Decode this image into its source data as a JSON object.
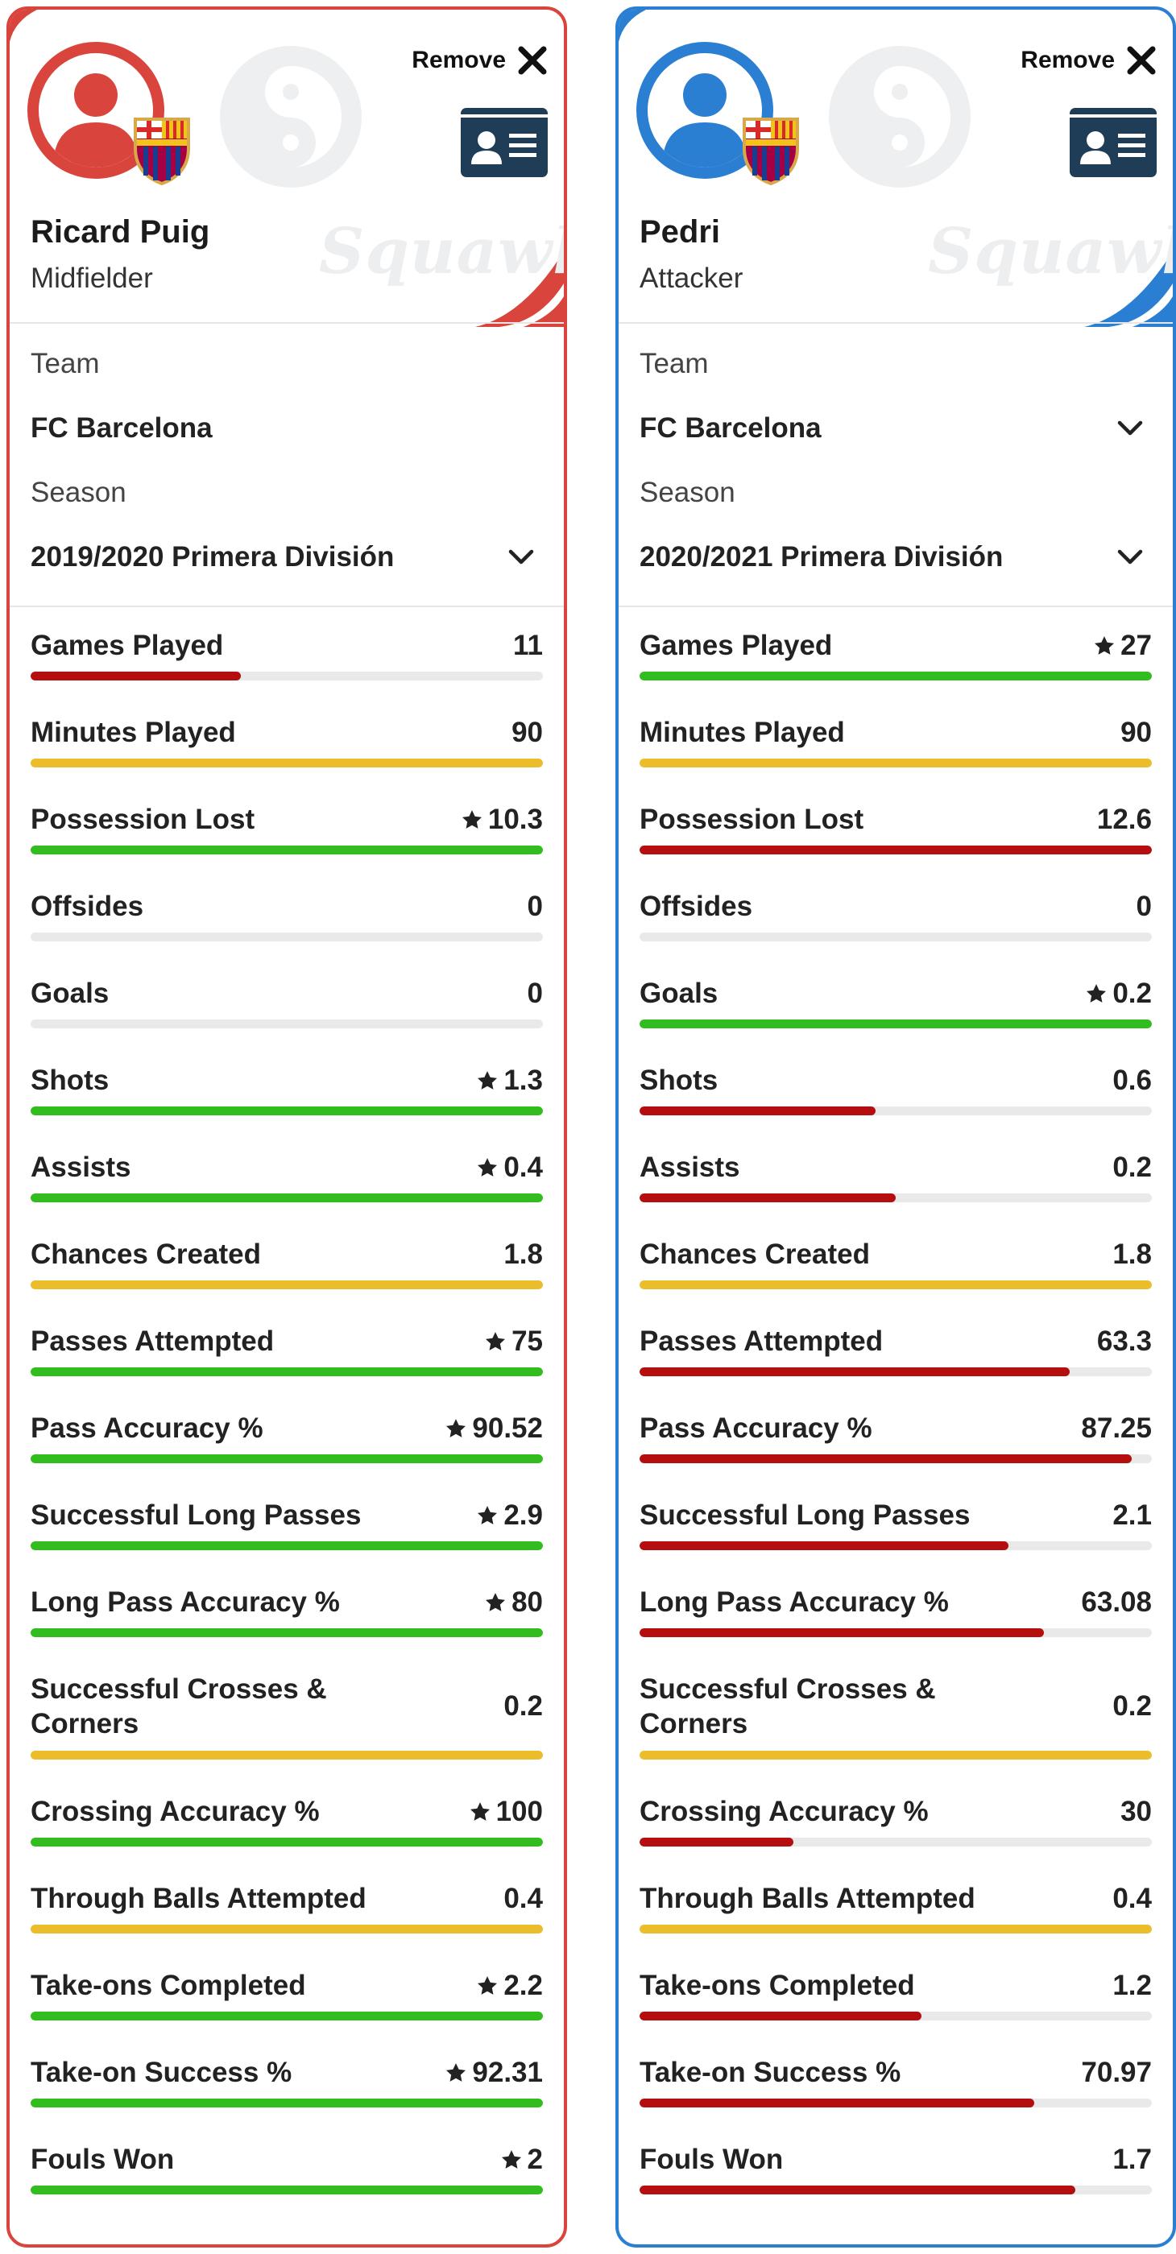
{
  "watermark": "Squawka",
  "remove_label": "Remove",
  "labels": {
    "team": "Team",
    "season": "Season"
  },
  "colors": {
    "green": "#32bd1e",
    "red": "#b40e0e",
    "yellow": "#ecbd2b",
    "empty": "#e9e9ea",
    "card1_accent": "#d9453d",
    "card2_accent": "#2a7fd2"
  },
  "icons": {
    "remove": "close-icon",
    "profile": "id-card-icon",
    "dropdown": "chevron-down-icon",
    "best": "star-icon",
    "club": "fc-barcelona-crest",
    "avatar": "user-silhouette-icon"
  },
  "players": [
    {
      "name": "Ricard Puig",
      "position": "Midfielder",
      "team": "FC Barcelona",
      "season": "2019/2020 Primera División",
      "stats": [
        {
          "label": "Games Played",
          "value": "11",
          "star": false,
          "bar": "red",
          "fill": 0.41
        },
        {
          "label": "Minutes Played",
          "value": "90",
          "star": false,
          "bar": "yellow",
          "fill": 1
        },
        {
          "label": "Possession Lost",
          "value": "10.3",
          "star": true,
          "bar": "green",
          "fill": 1
        },
        {
          "label": "Offsides",
          "value": "0",
          "star": false,
          "bar": "empty",
          "fill": 0
        },
        {
          "label": "Goals",
          "value": "0",
          "star": false,
          "bar": "empty",
          "fill": 0
        },
        {
          "label": "Shots",
          "value": "1.3",
          "star": true,
          "bar": "green",
          "fill": 1
        },
        {
          "label": "Assists",
          "value": "0.4",
          "star": true,
          "bar": "green",
          "fill": 1
        },
        {
          "label": "Chances Created",
          "value": "1.8",
          "star": false,
          "bar": "yellow",
          "fill": 1
        },
        {
          "label": "Passes Attempted",
          "value": "75",
          "star": true,
          "bar": "green",
          "fill": 1
        },
        {
          "label": "Pass Accuracy %",
          "value": "90.52",
          "star": true,
          "bar": "green",
          "fill": 1
        },
        {
          "label": "Successful Long Passes",
          "value": "2.9",
          "star": true,
          "bar": "green",
          "fill": 1
        },
        {
          "label": "Long Pass Accuracy %",
          "value": "80",
          "star": true,
          "bar": "green",
          "fill": 1
        },
        {
          "label": "Successful Crosses & Corners",
          "value": "0.2",
          "star": false,
          "bar": "yellow",
          "fill": 1
        },
        {
          "label": "Crossing Accuracy %",
          "value": "100",
          "star": true,
          "bar": "green",
          "fill": 1
        },
        {
          "label": "Through Balls Attempted",
          "value": "0.4",
          "star": false,
          "bar": "yellow",
          "fill": 1
        },
        {
          "label": "Take-ons Completed",
          "value": "2.2",
          "star": true,
          "bar": "green",
          "fill": 1
        },
        {
          "label": "Take-on Success %",
          "value": "92.31",
          "star": true,
          "bar": "green",
          "fill": 1
        },
        {
          "label": "Fouls Won",
          "value": "2",
          "star": true,
          "bar": "green",
          "fill": 1
        }
      ]
    },
    {
      "name": "Pedri",
      "position": "Attacker",
      "team": "FC Barcelona",
      "season": "2020/2021 Primera División",
      "stats": [
        {
          "label": "Games Played",
          "value": "27",
          "star": true,
          "bar": "green",
          "fill": 1
        },
        {
          "label": "Minutes Played",
          "value": "90",
          "star": false,
          "bar": "yellow",
          "fill": 1
        },
        {
          "label": "Possession Lost",
          "value": "12.6",
          "star": false,
          "bar": "red",
          "fill": 1
        },
        {
          "label": "Offsides",
          "value": "0",
          "star": false,
          "bar": "empty",
          "fill": 0
        },
        {
          "label": "Goals",
          "value": "0.2",
          "star": true,
          "bar": "green",
          "fill": 1
        },
        {
          "label": "Shots",
          "value": "0.6",
          "star": false,
          "bar": "red",
          "fill": 0.46
        },
        {
          "label": "Assists",
          "value": "0.2",
          "star": false,
          "bar": "red",
          "fill": 0.5
        },
        {
          "label": "Chances Created",
          "value": "1.8",
          "star": false,
          "bar": "yellow",
          "fill": 1
        },
        {
          "label": "Passes Attempted",
          "value": "63.3",
          "star": false,
          "bar": "red",
          "fill": 0.84
        },
        {
          "label": "Pass Accuracy %",
          "value": "87.25",
          "star": false,
          "bar": "red",
          "fill": 0.96
        },
        {
          "label": "Successful Long Passes",
          "value": "2.1",
          "star": false,
          "bar": "red",
          "fill": 0.72
        },
        {
          "label": "Long Pass Accuracy %",
          "value": "63.08",
          "star": false,
          "bar": "red",
          "fill": 0.79
        },
        {
          "label": "Successful Crosses & Corners",
          "value": "0.2",
          "star": false,
          "bar": "yellow",
          "fill": 1
        },
        {
          "label": "Crossing Accuracy %",
          "value": "30",
          "star": false,
          "bar": "red",
          "fill": 0.3
        },
        {
          "label": "Through Balls Attempted",
          "value": "0.4",
          "star": false,
          "bar": "yellow",
          "fill": 1
        },
        {
          "label": "Take-ons Completed",
          "value": "1.2",
          "star": false,
          "bar": "red",
          "fill": 0.55
        },
        {
          "label": "Take-on Success %",
          "value": "70.97",
          "star": false,
          "bar": "red",
          "fill": 0.77
        },
        {
          "label": "Fouls Won",
          "value": "1.7",
          "star": false,
          "bar": "red",
          "fill": 0.85
        }
      ]
    }
  ]
}
